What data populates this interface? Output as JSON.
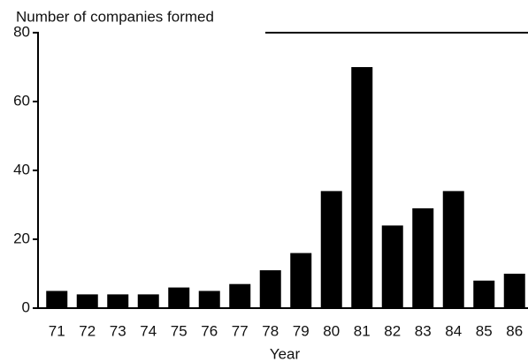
{
  "chart_data": {
    "type": "bar",
    "title": "Number of companies formed",
    "x_label": "Year",
    "categories": [
      "71",
      "72",
      "73",
      "74",
      "75",
      "76",
      "77",
      "78",
      "79",
      "80",
      "81",
      "82",
      "83",
      "84",
      "85",
      "86"
    ],
    "values": [
      5,
      4,
      4,
      4,
      6,
      5,
      7,
      11,
      16,
      34,
      70,
      24,
      29,
      34,
      8,
      10
    ],
    "color": "#000000",
    "ylim": [
      0,
      80
    ],
    "yticks": [
      0,
      20,
      40,
      60,
      80
    ],
    "grid": false
  }
}
